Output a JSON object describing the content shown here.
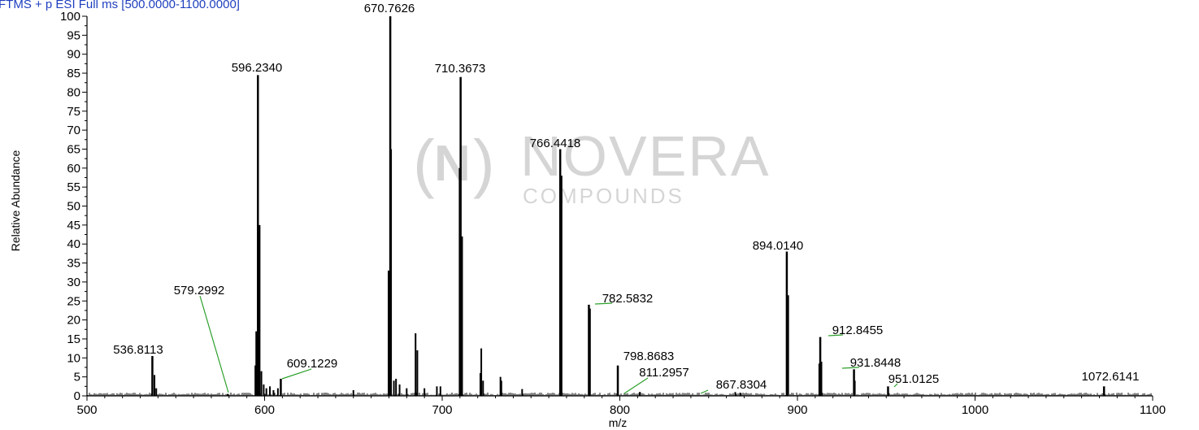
{
  "header": {
    "scan_filter": "FTMS + p ESI Full ms [500.0000-1100.0000]"
  },
  "watermark": {
    "letter": "N",
    "brand": "NOVERA",
    "sub": "COMPOUNDS"
  },
  "chart_data": {
    "type": "bar",
    "title": "",
    "xlabel": "m/z",
    "ylabel": "Relative Abundance",
    "xlim": [
      500,
      1100
    ],
    "ylim": [
      0,
      100
    ],
    "x_ticks": [
      500,
      600,
      700,
      800,
      900,
      1000,
      1100
    ],
    "y_ticks": [
      0,
      5,
      10,
      15,
      20,
      25,
      30,
      35,
      40,
      45,
      50,
      55,
      60,
      65,
      70,
      75,
      80,
      85,
      90,
      95,
      100
    ],
    "grid": false,
    "bar_color": "#000000",
    "leader_color": "#2ca02c",
    "labeled_peaks": [
      {
        "mz": 536.8113,
        "label": "536.8113",
        "intensity": 10.5
      },
      {
        "mz": 579.2992,
        "label": "579.2992",
        "intensity": 0.5
      },
      {
        "mz": 596.234,
        "label": "596.2340",
        "intensity": 84.5
      },
      {
        "mz": 609.1229,
        "label": "609.1229",
        "intensity": 4.5
      },
      {
        "mz": 670.7626,
        "label": "670.7626",
        "intensity": 100
      },
      {
        "mz": 710.3673,
        "label": "710.3673",
        "intensity": 84
      },
      {
        "mz": 766.4418,
        "label": "766.4418",
        "intensity": 65
      },
      {
        "mz": 782.5832,
        "label": "782.5832",
        "intensity": 24
      },
      {
        "mz": 798.8683,
        "label": "798.8683",
        "intensity": 8
      },
      {
        "mz": 811.2957,
        "label": "811.2957",
        "intensity": 1
      },
      {
        "mz": 867.8304,
        "label": "867.8304",
        "intensity": 0.8
      },
      {
        "mz": 894.014,
        "label": "894.0140",
        "intensity": 38
      },
      {
        "mz": 912.8455,
        "label": "912.8455",
        "intensity": 15.5
      },
      {
        "mz": 931.8448,
        "label": "931.8448",
        "intensity": 7
      },
      {
        "mz": 951.0125,
        "label": "951.0125",
        "intensity": 2.5
      },
      {
        "mz": 1072.6141,
        "label": "1072.6141",
        "intensity": 2.5
      }
    ],
    "other_peaks": [
      {
        "mz": 538.0,
        "intensity": 5.5
      },
      {
        "mz": 539.0,
        "intensity": 2
      },
      {
        "mz": 594.8,
        "intensity": 8
      },
      {
        "mz": 595.3,
        "intensity": 17
      },
      {
        "mz": 597.2,
        "intensity": 45
      },
      {
        "mz": 598.2,
        "intensity": 6.5
      },
      {
        "mz": 599.5,
        "intensity": 3
      },
      {
        "mz": 601.0,
        "intensity": 2
      },
      {
        "mz": 603.0,
        "intensity": 2.5
      },
      {
        "mz": 605.0,
        "intensity": 1.5
      },
      {
        "mz": 607.5,
        "intensity": 2
      },
      {
        "mz": 669.8,
        "intensity": 33
      },
      {
        "mz": 671.2,
        "intensity": 65
      },
      {
        "mz": 672.8,
        "intensity": 4
      },
      {
        "mz": 674.0,
        "intensity": 4.5
      },
      {
        "mz": 676.0,
        "intensity": 3
      },
      {
        "mz": 680.0,
        "intensity": 2
      },
      {
        "mz": 685.0,
        "intensity": 16.5
      },
      {
        "mz": 686.0,
        "intensity": 12
      },
      {
        "mz": 690.0,
        "intensity": 2
      },
      {
        "mz": 697.0,
        "intensity": 2.5
      },
      {
        "mz": 699.0,
        "intensity": 2.5
      },
      {
        "mz": 709.8,
        "intensity": 60
      },
      {
        "mz": 711.2,
        "intensity": 42
      },
      {
        "mz": 721.5,
        "intensity": 6
      },
      {
        "mz": 722.0,
        "intensity": 12.5
      },
      {
        "mz": 723.0,
        "intensity": 4
      },
      {
        "mz": 732.8,
        "intensity": 5
      },
      {
        "mz": 733.3,
        "intensity": 4
      },
      {
        "mz": 745.0,
        "intensity": 1.8
      },
      {
        "mz": 767.2,
        "intensity": 58
      },
      {
        "mz": 783.2,
        "intensity": 23
      },
      {
        "mz": 894.8,
        "intensity": 26.5
      },
      {
        "mz": 912.3,
        "intensity": 8.5
      },
      {
        "mz": 913.5,
        "intensity": 9
      },
      {
        "mz": 932.3,
        "intensity": 4
      },
      {
        "mz": 650.0,
        "intensity": 1.5
      },
      {
        "mz": 865.0,
        "intensity": 1
      }
    ]
  }
}
